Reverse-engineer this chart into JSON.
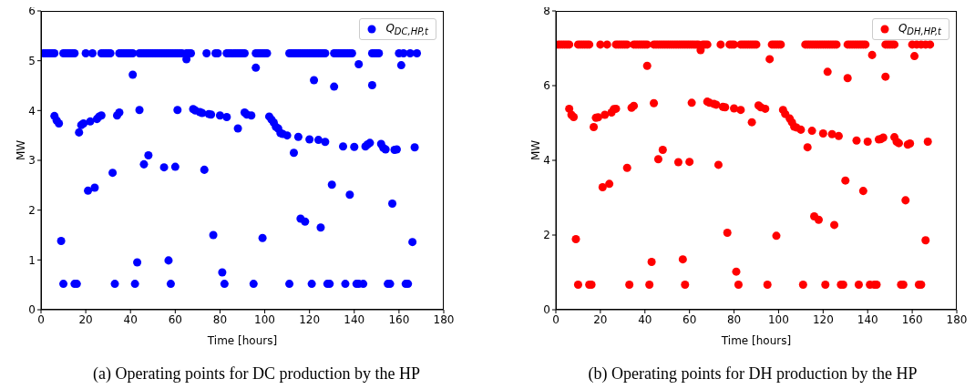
{
  "chart_data": [
    {
      "type": "scatter",
      "xlabel": "Time [hours]",
      "ylabel": "MW",
      "xlim": [
        0,
        180
      ],
      "xticks": [
        0,
        20,
        40,
        60,
        80,
        100,
        120,
        140,
        160,
        180
      ],
      "ylim": [
        0,
        6
      ],
      "yticks": [
        0,
        1,
        2,
        3,
        4,
        5,
        6
      ],
      "grid": false,
      "legend": "top right",
      "marker": "circle",
      "annotations": [
        "(a) Operating points for DC production by the HP"
      ],
      "series": [
        {
          "name": "Q$_{DC,HP,t}$",
          "color": "#0000ff",
          "x": [
            1,
            2,
            3,
            4,
            5,
            6,
            10,
            11,
            12,
            13,
            14,
            15,
            20,
            23,
            27,
            28,
            29,
            30,
            31,
            35,
            36,
            37,
            38,
            39,
            40,
            41,
            44,
            45,
            46,
            47,
            48,
            49,
            50,
            51,
            52,
            53,
            54,
            55,
            56,
            57,
            58,
            59,
            60,
            61,
            62,
            63,
            65,
            66,
            67,
            74,
            78,
            79,
            83,
            84,
            85,
            86,
            87,
            88,
            89,
            90,
            91,
            96,
            97,
            98,
            99,
            100,
            101,
            111,
            112,
            113,
            114,
            115,
            116,
            117,
            118,
            119,
            120,
            121,
            122,
            123,
            124,
            125,
            126,
            127,
            131,
            132,
            133,
            134,
            135,
            136,
            137,
            138,
            139,
            148,
            149,
            150,
            151,
            160,
            162,
            165,
            168,
            6,
            7,
            8,
            9,
            10,
            15,
            16,
            17,
            18,
            19,
            21,
            22,
            24,
            25,
            26,
            27,
            32,
            33,
            34,
            35,
            41,
            42,
            43,
            44,
            46,
            48,
            55,
            57,
            58,
            60,
            61,
            65,
            68,
            69,
            71,
            72,
            73,
            75,
            76,
            77,
            80,
            81,
            82,
            83,
            88,
            91,
            92,
            94,
            95,
            96,
            99,
            102,
            103,
            104,
            105,
            106,
            107,
            108,
            110,
            111,
            113,
            115,
            116,
            118,
            120,
            121,
            122,
            124,
            125,
            127,
            128,
            129,
            130,
            131,
            135,
            136,
            138,
            140,
            141,
            142,
            142,
            144,
            145,
            146,
            147,
            148,
            152,
            153,
            154,
            155,
            156,
            157,
            158,
            159,
            161,
            163,
            164,
            166,
            167
          ],
          "values": [
            5.15,
            5.15,
            5.15,
            5.15,
            5.15,
            5.15,
            5.15,
            5.15,
            5.15,
            5.15,
            5.15,
            5.15,
            5.15,
            5.15,
            5.15,
            5.15,
            5.15,
            5.15,
            5.15,
            5.15,
            5.15,
            5.15,
            5.15,
            5.15,
            5.15,
            5.15,
            5.15,
            5.15,
            5.15,
            5.15,
            5.15,
            5.15,
            5.15,
            5.15,
            5.15,
            5.15,
            5.15,
            5.15,
            5.15,
            5.15,
            5.15,
            5.15,
            5.15,
            5.15,
            5.15,
            5.15,
            5.15,
            5.15,
            5.15,
            5.15,
            5.15,
            5.15,
            5.15,
            5.15,
            5.15,
            5.15,
            5.15,
            5.15,
            5.15,
            5.15,
            5.15,
            5.15,
            5.15,
            5.15,
            5.15,
            5.15,
            5.15,
            5.15,
            5.15,
            5.15,
            5.15,
            5.15,
            5.15,
            5.15,
            5.15,
            5.15,
            5.15,
            5.15,
            5.15,
            5.15,
            5.15,
            5.15,
            5.15,
            5.15,
            5.15,
            5.15,
            5.15,
            5.15,
            5.15,
            5.15,
            5.15,
            5.15,
            5.15,
            5.15,
            5.15,
            5.15,
            5.15,
            5.15,
            5.15,
            5.15,
            5.15,
            3.89,
            3.8,
            3.74,
            1.38,
            0.52,
            0.52,
            0.52,
            3.56,
            3.71,
            3.74,
            2.39,
            3.78,
            2.45,
            3.83,
            3.88,
            3.9,
            2.75,
            0.52,
            3.9,
            3.96,
            4.72,
            0.52,
            0.95,
            4.01,
            2.92,
            3.1,
            2.86,
            0.99,
            0.52,
            2.87,
            4.01,
            5.03,
            4.03,
            4.0,
            3.97,
            3.95,
            2.81,
            3.93,
            3.92,
            1.5,
            3.9,
            0.75,
            0.52,
            3.87,
            3.64,
            3.96,
            3.92,
            3.9,
            0.52,
            4.86,
            1.44,
            3.88,
            3.82,
            3.76,
            3.67,
            3.64,
            3.55,
            3.53,
            3.5,
            0.52,
            3.15,
            3.47,
            1.83,
            1.77,
            3.42,
            0.52,
            4.61,
            3.41,
            1.65,
            3.37,
            0.52,
            0.52,
            2.51,
            4.48,
            3.28,
            0.52,
            2.31,
            3.27,
            0.52,
            4.93,
            0.52,
            0.52,
            3.28,
            3.32,
            3.35,
            4.51,
            3.33,
            3.25,
            3.22,
            0.52,
            0.52,
            2.13,
            3.21,
            3.22,
            4.91,
            0.52,
            0.52,
            1.36,
            3.26
          ]
        }
      ]
    },
    {
      "type": "scatter",
      "xlabel": "Time [hours]",
      "ylabel": "MW",
      "xlim": [
        0,
        180
      ],
      "xticks": [
        0,
        20,
        40,
        60,
        80,
        100,
        120,
        140,
        160,
        180
      ],
      "ylim": [
        0,
        8
      ],
      "yticks": [
        0,
        2,
        4,
        6,
        8
      ],
      "grid": false,
      "legend": "top right",
      "marker": "circle",
      "annotations": [
        "(b) Operating points for DH production by the HP"
      ],
      "series": [
        {
          "name": "Q$_{DH,HP,t}$",
          "color": "#ff0000",
          "x": [
            1,
            2,
            3,
            4,
            5,
            6,
            10,
            11,
            12,
            13,
            14,
            15,
            20,
            23,
            27,
            28,
            29,
            30,
            31,
            32,
            35,
            36,
            37,
            38,
            39,
            40,
            41,
            44,
            45,
            46,
            47,
            48,
            49,
            50,
            51,
            52,
            53,
            54,
            55,
            56,
            57,
            58,
            59,
            60,
            61,
            62,
            63,
            64,
            66,
            67,
            68,
            74,
            78,
            79,
            80,
            83,
            84,
            85,
            86,
            87,
            88,
            89,
            90,
            97,
            98,
            99,
            100,
            101,
            112,
            113,
            114,
            115,
            116,
            117,
            118,
            119,
            120,
            121,
            122,
            123,
            124,
            125,
            126,
            131,
            132,
            133,
            134,
            135,
            136,
            137,
            138,
            139,
            148,
            149,
            150,
            151,
            152,
            160,
            162,
            164,
            166,
            168,
            6,
            7,
            8,
            9,
            10,
            15,
            16,
            17,
            18,
            19,
            21,
            22,
            24,
            25,
            26,
            27,
            32,
            33,
            34,
            35,
            41,
            42,
            43,
            44,
            46,
            48,
            55,
            57,
            58,
            60,
            61,
            65,
            68,
            69,
            71,
            72,
            73,
            75,
            76,
            77,
            80,
            81,
            82,
            83,
            88,
            91,
            92,
            94,
            95,
            96,
            99,
            102,
            103,
            105,
            106,
            107,
            108,
            110,
            111,
            113,
            115,
            116,
            118,
            120,
            121,
            122,
            124,
            125,
            127,
            128,
            129,
            130,
            131,
            135,
            136,
            138,
            140,
            141,
            142,
            143,
            144,
            145,
            146,
            147,
            148,
            152,
            153,
            154,
            155,
            156,
            157,
            158,
            159,
            161,
            163,
            164,
            166,
            167
          ],
          "values": [
            7.1,
            7.1,
            7.1,
            7.1,
            7.1,
            7.1,
            7.1,
            7.1,
            7.1,
            7.1,
            7.1,
            7.1,
            7.1,
            7.1,
            7.1,
            7.1,
            7.1,
            7.1,
            7.1,
            7.1,
            7.1,
            7.1,
            7.1,
            7.1,
            7.1,
            7.1,
            7.1,
            7.1,
            7.1,
            7.1,
            7.1,
            7.1,
            7.1,
            7.1,
            7.1,
            7.1,
            7.1,
            7.1,
            7.1,
            7.1,
            7.1,
            7.1,
            7.1,
            7.1,
            7.1,
            7.1,
            7.1,
            7.1,
            7.1,
            7.1,
            7.1,
            7.1,
            7.1,
            7.1,
            7.1,
            7.1,
            7.1,
            7.1,
            7.1,
            7.1,
            7.1,
            7.1,
            7.1,
            7.1,
            7.1,
            7.1,
            7.1,
            7.1,
            7.1,
            7.1,
            7.1,
            7.1,
            7.1,
            7.1,
            7.1,
            7.1,
            7.1,
            7.1,
            7.1,
            7.1,
            7.1,
            7.1,
            7.1,
            7.1,
            7.1,
            7.1,
            7.1,
            7.1,
            7.1,
            7.1,
            7.1,
            7.1,
            7.1,
            7.1,
            7.1,
            7.1,
            7.1,
            7.1,
            7.1,
            7.1,
            7.1,
            7.1,
            5.38,
            5.22,
            5.16,
            1.89,
            0.67,
            0.67,
            0.67,
            4.89,
            5.14,
            5.15,
            3.28,
            5.22,
            3.37,
            5.28,
            5.37,
            5.38,
            3.8,
            0.67,
            5.41,
            5.46,
            6.53,
            0.67,
            1.28,
            5.53,
            4.03,
            4.28,
            3.95,
            1.35,
            0.67,
            3.96,
            5.54,
            6.95,
            5.57,
            5.54,
            5.51,
            5.49,
            3.88,
            5.43,
            5.42,
            2.06,
            5.39,
            1.02,
            0.67,
            5.35,
            5.02,
            5.47,
            5.42,
            5.38,
            0.67,
            6.71,
            1.98,
            5.35,
            5.24,
            5.12,
            5.02,
            4.9,
            4.88,
            4.82,
            0.67,
            4.35,
            4.79,
            2.5,
            2.41,
            4.72,
            0.67,
            6.37,
            4.7,
            2.27,
            4.65,
            0.67,
            0.67,
            3.46,
            6.2,
            4.53,
            0.67,
            3.18,
            4.5,
            0.67,
            6.82,
            0.67,
            0.67,
            4.56,
            4.57,
            4.61,
            6.24,
            4.62,
            4.5,
            4.46,
            0.67,
            0.67,
            2.93,
            4.42,
            4.45,
            6.79,
            0.67,
            0.67,
            1.86,
            4.5
          ]
        }
      ]
    }
  ]
}
